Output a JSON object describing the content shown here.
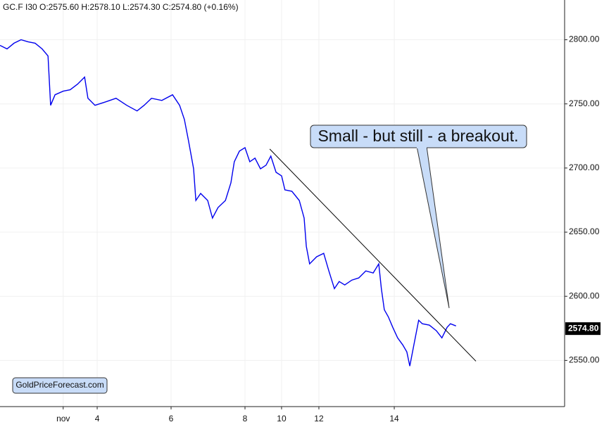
{
  "chart_data": {
    "type": "line",
    "title": "GC.F  I30  O:2575.60  H:2578.10  L:2574.30  C:2574.80  (+0.16%)",
    "color": "#0000ee",
    "grid": true,
    "xlim": [
      0,
      15.28
    ],
    "ylim": [
      2514,
      2831
    ],
    "xticks": [
      {
        "value": 1.71,
        "label": "nov"
      },
      {
        "value": 2.63,
        "label": "4"
      },
      {
        "value": 4.63,
        "label": "6"
      },
      {
        "value": 6.63,
        "label": "8"
      },
      {
        "value": 7.62,
        "label": "10"
      },
      {
        "value": 8.63,
        "label": "12"
      },
      {
        "value": 10.67,
        "label": "14"
      }
    ],
    "yticks": [
      {
        "value": 2550,
        "label": "2550.00"
      },
      {
        "value": 2600,
        "label": "2600.00"
      },
      {
        "value": 2650,
        "label": "2650.00"
      },
      {
        "value": 2700,
        "label": "2700.00"
      },
      {
        "value": 2750,
        "label": "2750.00"
      },
      {
        "value": 2800,
        "label": "2800.00"
      }
    ],
    "x": [
      0,
      0.19,
      0.38,
      0.57,
      0.76,
      0.95,
      1.14,
      1.3,
      1.37,
      1.49,
      1.71,
      1.9,
      2.1,
      2.29,
      2.38,
      2.57,
      2.86,
      3.14,
      3.43,
      3.71,
      3.9,
      4.1,
      4.38,
      4.67,
      4.86,
      4.99,
      5.1,
      5.24,
      5.3,
      5.43,
      5.62,
      5.75,
      5.9,
      6.1,
      6.25,
      6.34,
      6.48,
      6.63,
      6.76,
      6.9,
      7.05,
      7.2,
      7.33,
      7.47,
      7.62,
      7.71,
      7.9,
      8.1,
      8.23,
      8.29,
      8.38,
      8.57,
      8.76,
      8.9,
      9.05,
      9.18,
      9.33,
      9.52,
      9.71,
      9.9,
      10.1,
      10.25,
      10.32,
      10.4,
      10.51,
      10.63,
      10.76,
      10.9,
      11.01,
      11.09,
      11.2,
      11.33,
      11.43,
      11.62,
      11.81,
      11.96,
      12.1,
      12.19,
      12.34
    ],
    "values": [
      2795.6,
      2792.9,
      2797.3,
      2800,
      2798.4,
      2797.3,
      2792.9,
      2787.4,
      2748.9,
      2757.1,
      2759.9,
      2761,
      2765.4,
      2770.9,
      2754.4,
      2748.9,
      2751.6,
      2754.4,
      2748.9,
      2744.5,
      2748.9,
      2754.4,
      2752.7,
      2757.1,
      2748.9,
      2737.9,
      2721.4,
      2699.4,
      2674.7,
      2680.2,
      2674.7,
      2661,
      2669.2,
      2674.7,
      2688.5,
      2704.9,
      2713.2,
      2715.9,
      2704.9,
      2707.7,
      2699.4,
      2702.2,
      2709.3,
      2696.7,
      2693.9,
      2683,
      2681.9,
      2674.7,
      2661,
      2639,
      2625.3,
      2630.8,
      2633.5,
      2619.8,
      2606,
      2611.5,
      2608.8,
      2612.6,
      2614.3,
      2619.8,
      2618.2,
      2625.3,
      2606,
      2589.5,
      2584,
      2575.8,
      2567.6,
      2562.1,
      2556.6,
      2545.6,
      2562.1,
      2581.3,
      2578.6,
      2577.5,
      2573.1,
      2567.6,
      2575.8,
      2578.6,
      2576.9
    ],
    "last_price": {
      "value": 2574.8,
      "label": "2574.80"
    },
    "trendline": {
      "x": [
        7.3,
        12.88
      ],
      "y": [
        2714.8,
        2549.4
      ]
    },
    "annotation": "Small - but still - a breakout.",
    "watermark": "GoldPriceForecast.com"
  }
}
